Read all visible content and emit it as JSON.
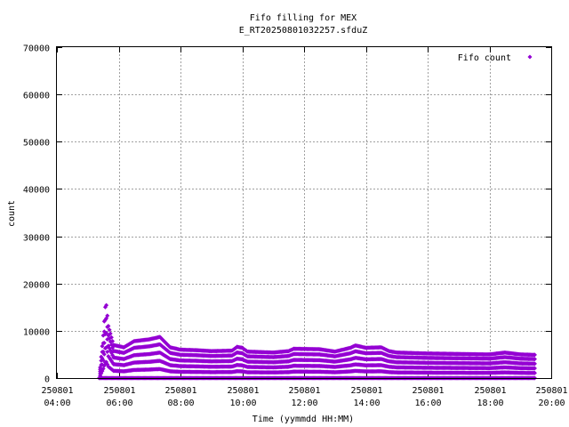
{
  "chart_data": {
    "type": "scatter",
    "title_line1": "Fifo filling for MEX",
    "title_line2": "E_RT20250801032257.sfduZ",
    "xlabel": "Time (yymmdd HH:MM)",
    "ylabel": "count",
    "x_range_hours": [
      4,
      20
    ],
    "ylim": [
      0,
      70000
    ],
    "y_ticks": [
      0,
      10000,
      20000,
      30000,
      40000,
      50000,
      60000,
      70000
    ],
    "x_ticks": [
      {
        "date": "250801",
        "time": "04:00"
      },
      {
        "date": "250801",
        "time": "06:00"
      },
      {
        "date": "250801",
        "time": "08:00"
      },
      {
        "date": "250801",
        "time": "10:00"
      },
      {
        "date": "250801",
        "time": "12:00"
      },
      {
        "date": "250801",
        "time": "14:00"
      },
      {
        "date": "250801",
        "time": "16:00"
      },
      {
        "date": "250801",
        "time": "18:00"
      },
      {
        "date": "250801",
        "time": "20:00"
      }
    ],
    "grid": true,
    "legend_position": "top-right",
    "series": [
      {
        "name": "Fifo count",
        "color": "#9400d3",
        "marker": "diamond",
        "start_time": "05:22",
        "end_time": "19:30",
        "envelope_max": [
          [
            "05:22",
            0
          ],
          [
            "05:30",
            9000
          ],
          [
            "05:35",
            16500
          ],
          [
            "05:40",
            11000
          ],
          [
            "05:50",
            7000
          ],
          [
            "06:10",
            6500
          ],
          [
            "06:30",
            7800
          ],
          [
            "07:00",
            8200
          ],
          [
            "07:20",
            8700
          ],
          [
            "07:40",
            6500
          ],
          [
            "08:00",
            6000
          ],
          [
            "08:30",
            5900
          ],
          [
            "09:00",
            5700
          ],
          [
            "09:40",
            5800
          ],
          [
            "09:50",
            6600
          ],
          [
            "10:00",
            6400
          ],
          [
            "10:10",
            5600
          ],
          [
            "11:00",
            5400
          ],
          [
            "11:30",
            5700
          ],
          [
            "11:40",
            6200
          ],
          [
            "12:30",
            6100
          ],
          [
            "13:00",
            5600
          ],
          [
            "13:30",
            6400
          ],
          [
            "13:40",
            6900
          ],
          [
            "14:00",
            6400
          ],
          [
            "14:30",
            6500
          ],
          [
            "14:45",
            5700
          ],
          [
            "15:00",
            5400
          ],
          [
            "16:00",
            5200
          ],
          [
            "17:00",
            5100
          ],
          [
            "18:00",
            5000
          ],
          [
            "18:30",
            5400
          ],
          [
            "19:00",
            5000
          ],
          [
            "19:30",
            4900
          ]
        ],
        "band_fractions": [
          0,
          0.22,
          0.42,
          0.62,
          0.82,
          1
        ]
      }
    ]
  }
}
